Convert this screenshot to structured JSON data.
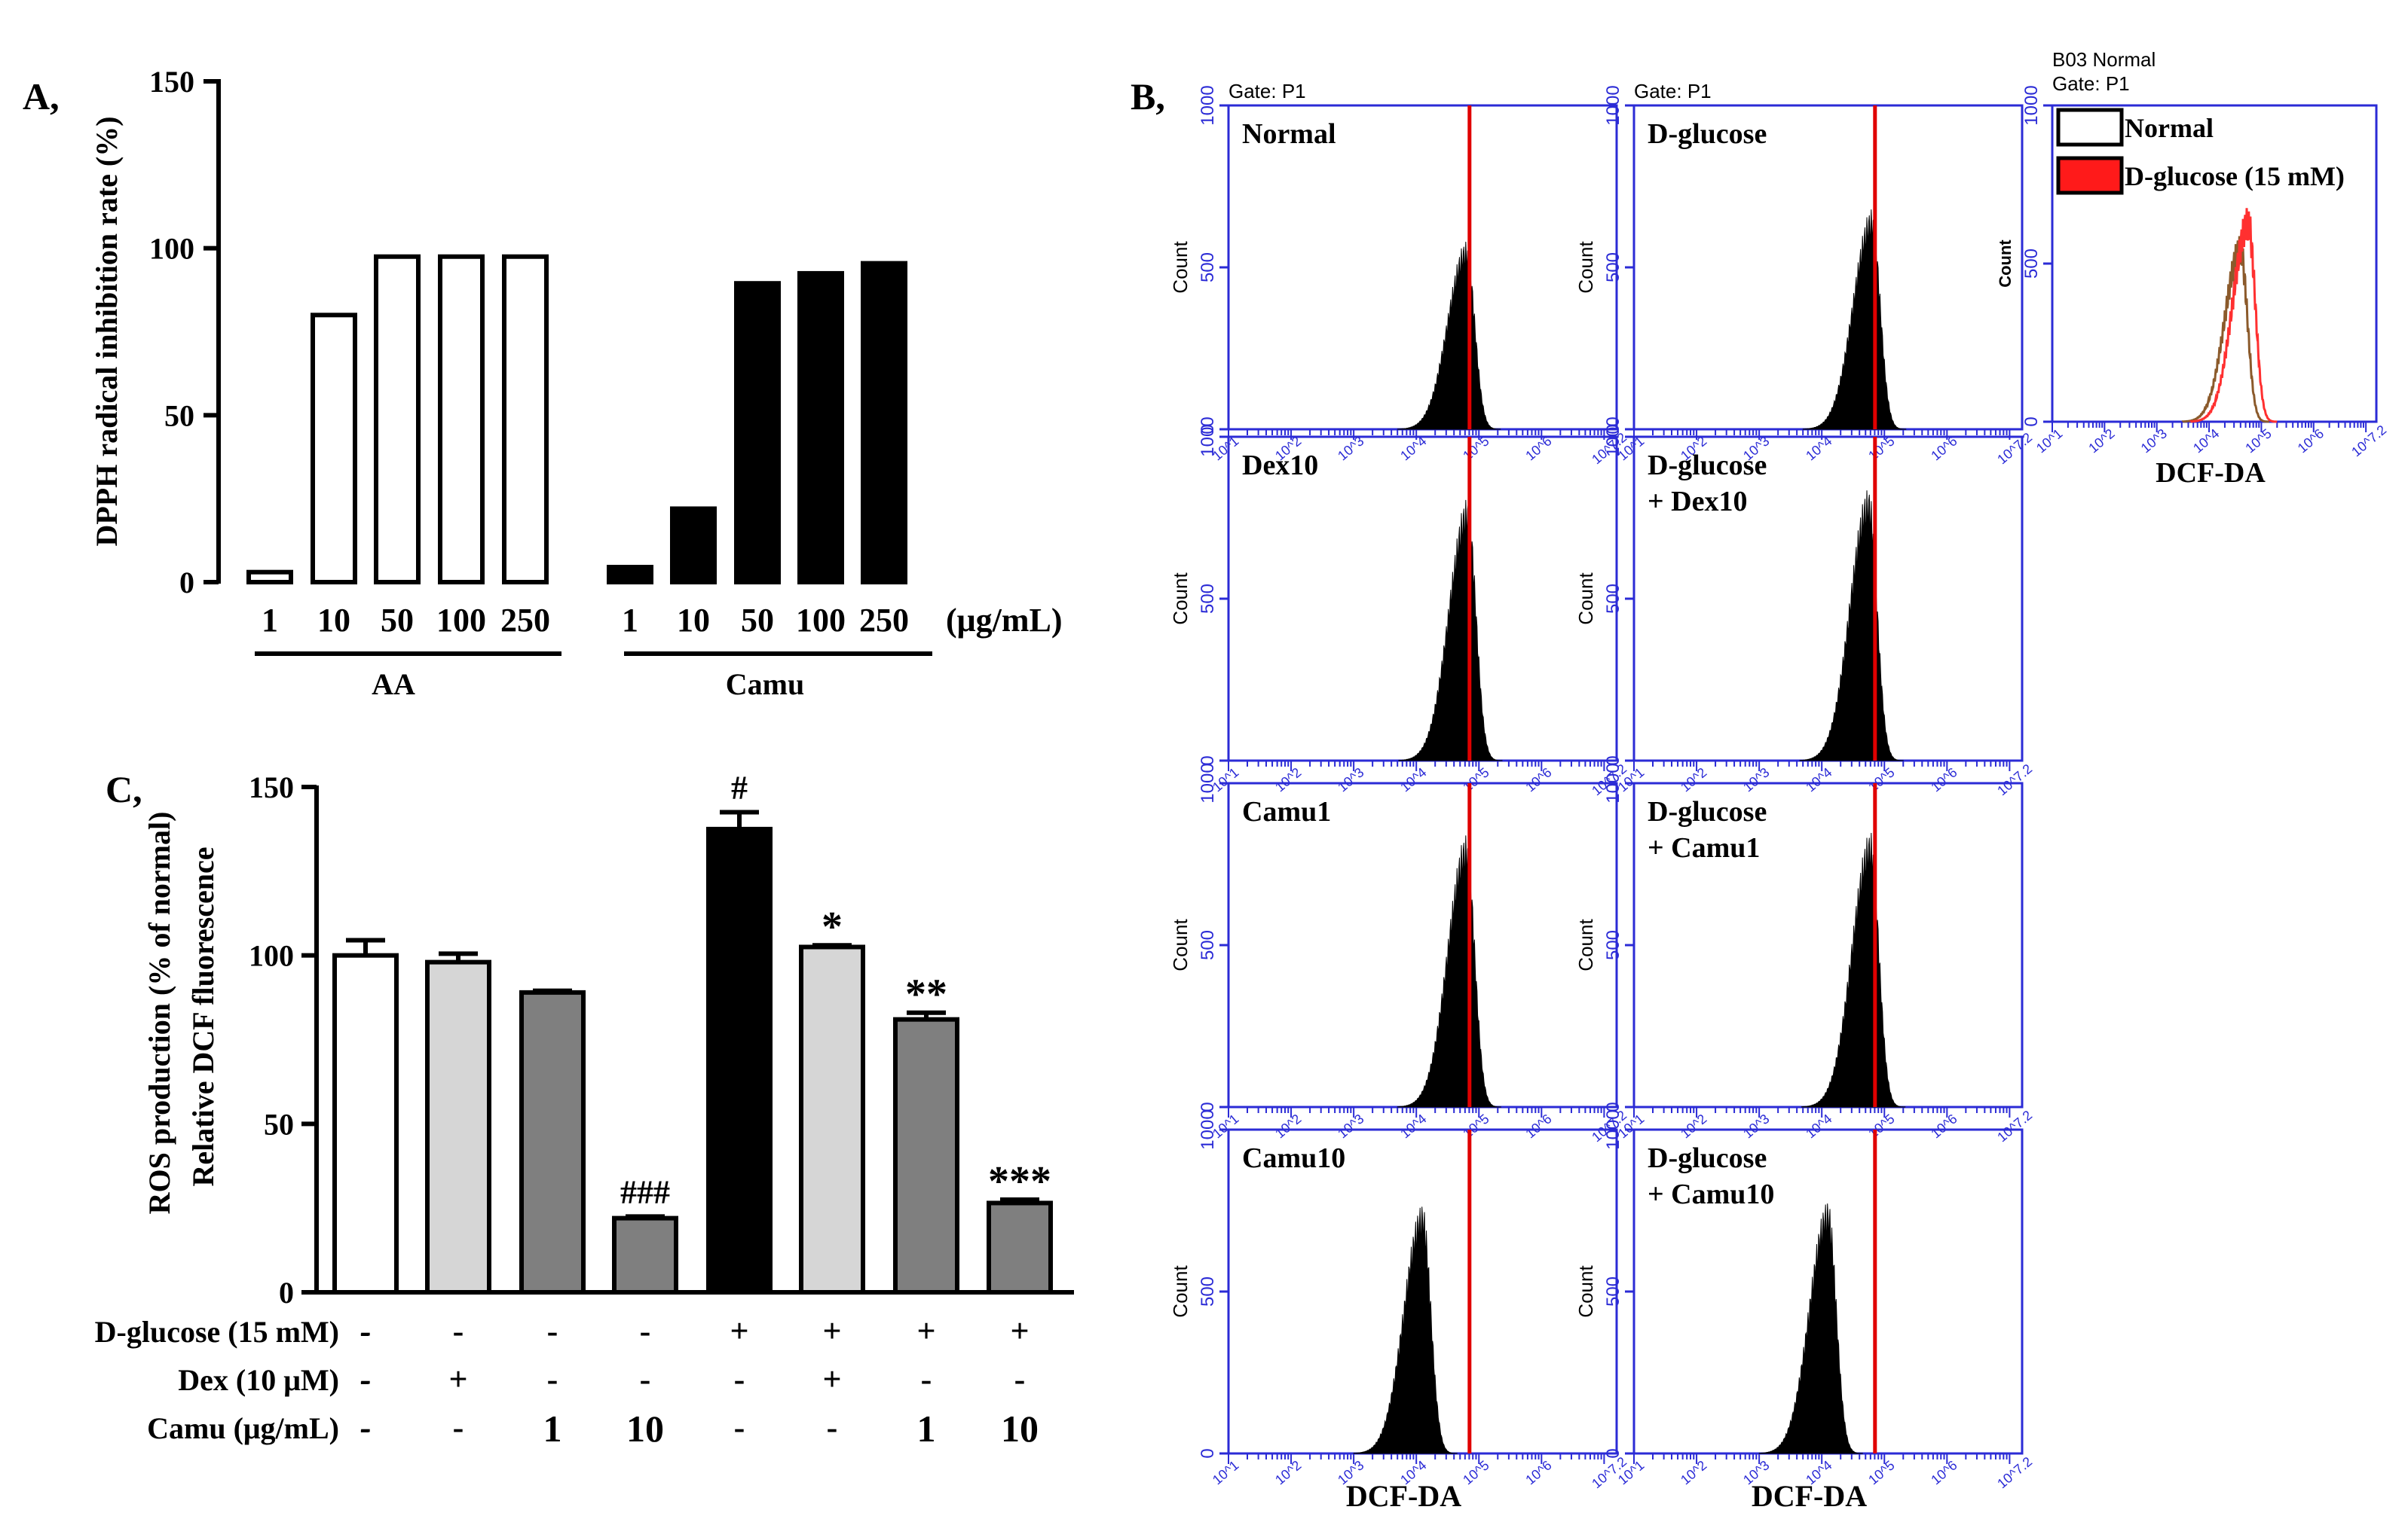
{
  "panel_labels": {
    "a": "A,",
    "b": "B,",
    "c": "C,"
  },
  "panel_a": {
    "chart_data": {
      "type": "bar",
      "title": "",
      "ylabel": "DPPH radical inhibition rate (%)",
      "ylim": [
        0,
        150
      ],
      "yticks": [
        "0",
        "50",
        "100",
        "150"
      ],
      "unit_label": "(μg/mL)",
      "groups": [
        {
          "name": "AA",
          "fill": "#ffffff",
          "categories": [
            "1",
            "10",
            "50",
            "100",
            "250"
          ],
          "values": [
            3,
            80,
            97.5,
            97.5,
            97.5
          ]
        },
        {
          "name": "Camu",
          "fill": "#000000",
          "categories": [
            "1",
            "10",
            "50",
            "100",
            "250"
          ],
          "values": [
            4.5,
            22,
            89.5,
            92.5,
            95.5
          ]
        }
      ]
    }
  },
  "panel_c": {
    "chart_data": {
      "type": "bar",
      "ylabel_line1": "ROS production (% of normal)",
      "ylabel_line2": "Relative DCF fluorescence",
      "ylim": [
        0,
        150
      ],
      "yticks": [
        "0",
        "50",
        "100",
        "150"
      ],
      "bars": [
        {
          "value": 100,
          "error": 4.5,
          "color": "#ffffff",
          "sig": ""
        },
        {
          "value": 98,
          "error": 2.5,
          "color": "#d6d6d6",
          "sig": ""
        },
        {
          "value": 89,
          "error": 0.5,
          "color": "#7f7f7f",
          "sig": ""
        },
        {
          "value": 22,
          "error": 0.5,
          "color": "#7f7f7f",
          "sig": "###"
        },
        {
          "value": 137.5,
          "error": 5,
          "color": "#000000",
          "sig": "#"
        },
        {
          "value": 102.5,
          "error": 0.5,
          "color": "#d6d6d6",
          "sig": "*"
        },
        {
          "value": 81,
          "error": 2,
          "color": "#7f7f7f",
          "sig": "**"
        },
        {
          "value": 26.5,
          "error": 1,
          "color": "#7f7f7f",
          "sig": "***"
        }
      ],
      "conditions": [
        {
          "label": "D-glucose (15 mM)",
          "values": [
            "-",
            "-",
            "-",
            "-",
            "+",
            "+",
            "+",
            "+"
          ]
        },
        {
          "label": "Dex (10 μM)",
          "values": [
            "-",
            "+",
            "-",
            "-",
            "-",
            "+",
            "-",
            "-"
          ]
        },
        {
          "label": "Camu (μg/mL)",
          "values": [
            "-",
            "-",
            "1",
            "10",
            "-",
            "-",
            "1",
            "10"
          ]
        }
      ]
    }
  },
  "panel_b": {
    "chart_data": {
      "type": "histogram",
      "gate_label": "Gate: P1",
      "ylabel": "Count",
      "xlabel": "DCF-DA",
      "yticks": [
        "0",
        "500",
        "1000"
      ],
      "xticks": [
        "10^1",
        "10^2",
        "10^3",
        "10^4",
        "10^5",
        "10^6",
        "10^7.2"
      ],
      "reference_log": 4.85,
      "columns": [
        [
          {
            "label_line1": "Normal",
            "label_line2": "",
            "peak_log": 4.8,
            "peak_count": 580
          },
          {
            "label_line1": "Dex10",
            "label_line2": "",
            "peak_log": 4.82,
            "peak_count": 810
          },
          {
            "label_line1": "Camu1",
            "label_line2": "",
            "peak_log": 4.8,
            "peak_count": 840
          },
          {
            "label_line1": "Camu10",
            "label_line2": "",
            "peak_log": 4.1,
            "peak_count": 770
          }
        ],
        [
          {
            "label_line1": "D-glucose",
            "label_line2": "",
            "peak_log": 4.8,
            "peak_count": 680
          },
          {
            "label_line1": "D-glucose",
            "label_line2": "+ Dex10",
            "peak_log": 4.75,
            "peak_count": 840
          },
          {
            "label_line1": "D-glucose",
            "label_line2": "+ Camu1",
            "peak_log": 4.78,
            "peak_count": 850
          },
          {
            "label_line1": "D-glucose",
            "label_line2": "+ Camu10",
            "peak_log": 4.1,
            "peak_count": 780
          }
        ]
      ],
      "overlay": {
        "title_line1": "B03 Normal",
        "title_line2": "Gate: P1",
        "ylabel": "Count",
        "xlabel": "DCF-DA",
        "series": [
          {
            "name": "Normal",
            "color": "#8b5a2b",
            "swatch": "#ffffff",
            "peak_log": 4.6,
            "peak_count": 590
          },
          {
            "name": "D-glucose (15 mM)",
            "color": "#ff3030",
            "swatch": "#ff1a1a",
            "peak_log": 4.75,
            "peak_count": 680
          }
        ]
      }
    }
  }
}
